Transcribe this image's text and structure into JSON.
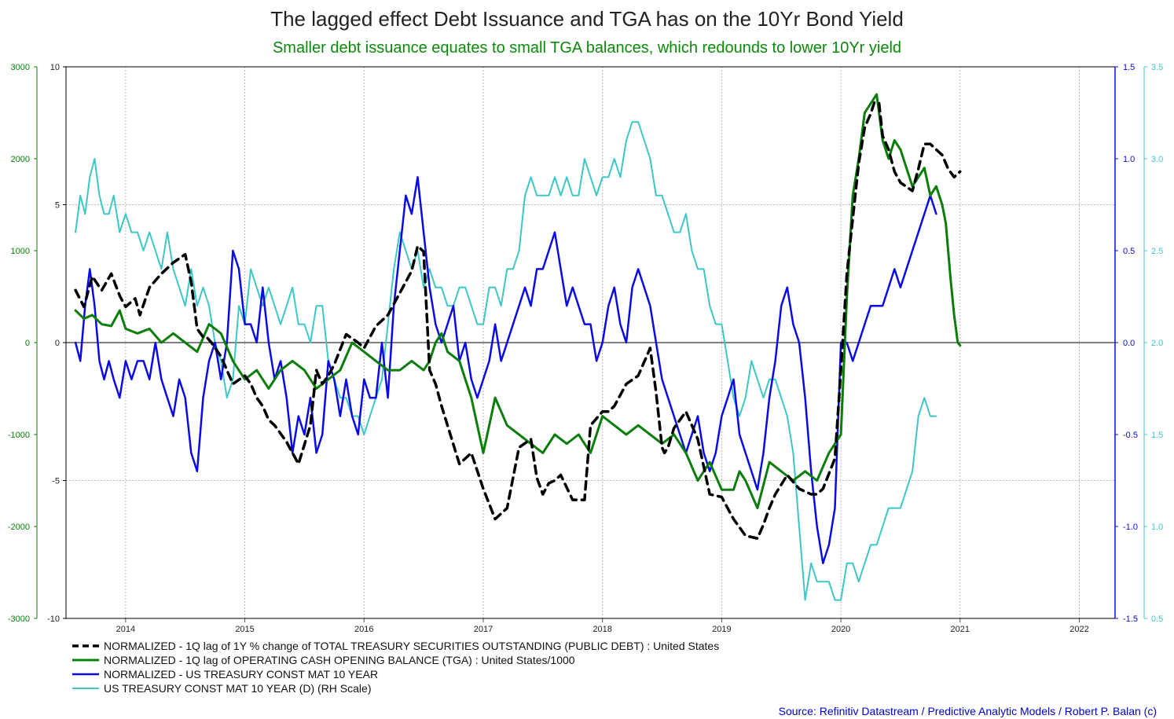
{
  "chart_data": {
    "type": "line",
    "title": "The lagged effect Debt Issuance and TGA has on the 10Yr Bond Yield",
    "subtitle": "Smaller debt issuance equates to small TGA balances, which redounds to lower 10Yr yield",
    "source": "Source: Refinitiv Datastream / Predictive Analytic Models / Robert P. Balan (c)",
    "colors": {
      "debt": "#000000",
      "tga": "#0a7d0a",
      "yield_norm": "#0a0ae6",
      "yield": "#3cc6c6",
      "axis_far_left": "#0a7d0a",
      "axis_right_inner": "#0a0ae6",
      "axis_right_outer": "#3cc6c6",
      "source_text": "#0000cc",
      "subtitle_text": "#0a8a0a"
    },
    "x_axis": {
      "range": [
        2013.5,
        2022.3
      ],
      "tick_labels": [
        "2014",
        "2015",
        "2016",
        "2017",
        "2018",
        "2019",
        "2020",
        "2021",
        "2022"
      ]
    },
    "axes": {
      "far_left": {
        "range": [
          -3000,
          3000
        ],
        "ticks": [
          "3000",
          "2000",
          "1000",
          "0",
          "-1000",
          "-2000",
          "-3000"
        ]
      },
      "left": {
        "range": [
          -10,
          10
        ],
        "ticks": [
          "10",
          "5",
          "0",
          "-5",
          "-10"
        ]
      },
      "right_inner": {
        "range": [
          -1.5,
          1.5
        ],
        "ticks": [
          "1.5",
          "1.0",
          "0.5",
          "0.0",
          "-0.5",
          "-1.0",
          "-1.5"
        ]
      },
      "right_outer": {
        "range": [
          0.5,
          3.5
        ],
        "ticks": [
          "3.5",
          "3.0",
          "2.5",
          "2.0",
          "1.5",
          "1.0",
          "0.5"
        ]
      }
    },
    "legend": [
      "NORMALIZED - 1Q lag of 1Y % change of TOTAL TREASURY SECURITIES OUTSTANDING (PUBLIC DEBT) : United States",
      "NORMALIZED - 1Q lag of OPERATING CASH OPENING BALANCE (TGA) : United States/1000",
      "NORMALIZED - US TREASURY CONST MAT 10 YEAR",
      "US TREASURY CONST MAT 10 YEAR (D) (RH Scale)"
    ],
    "series": [
      {
        "name": "NORMALIZED - 1Q lag of 1Y % change of TOTAL TREASURY SECURITIES OUTSTANDING (PUBLIC DEBT) : United States",
        "axis": "left",
        "x": [
          2013.58,
          2013.65,
          2013.72,
          2013.8,
          2013.88,
          2013.95,
          2014.0,
          2014.08,
          2014.12,
          2014.2,
          2014.3,
          2014.4,
          2014.5,
          2014.55,
          2014.6,
          2014.65,
          2014.68,
          2014.72,
          2014.8,
          2014.9,
          2015.0,
          2015.05,
          2015.1,
          2015.15,
          2015.2,
          2015.25,
          2015.35,
          2015.45,
          2015.55,
          2015.6,
          2015.65,
          2015.7,
          2015.75,
          2015.85,
          2015.95,
          2016.0,
          2016.1,
          2016.2,
          2016.3,
          2016.4,
          2016.45,
          2016.5,
          2016.55,
          2016.6,
          2016.65,
          2016.7,
          2016.8,
          2016.9,
          2017.0,
          2017.1,
          2017.2,
          2017.3,
          2017.4,
          2017.45,
          2017.5,
          2017.55,
          2017.6,
          2017.65,
          2017.75,
          2017.85,
          2017.9,
          2018.0,
          2018.05,
          2018.1,
          2018.2,
          2018.3,
          2018.4,
          2018.45,
          2018.5,
          2018.52,
          2018.55,
          2018.6,
          2018.7,
          2018.8,
          2018.9,
          2019.0,
          2019.1,
          2019.2,
          2019.3,
          2019.35,
          2019.4,
          2019.45,
          2019.55,
          2019.65,
          2019.75,
          2019.8,
          2019.85,
          2019.95,
          2020.0,
          2020.05,
          2020.1,
          2020.15,
          2020.2,
          2020.25,
          2020.28,
          2020.32,
          2020.35,
          2020.4,
          2020.45,
          2020.5,
          2020.6,
          2020.65,
          2020.7,
          2020.75,
          2020.8,
          2020.85,
          2020.9,
          2020.95,
          2021.0
        ],
        "values": [
          1.9,
          1.3,
          2.4,
          1.9,
          2.5,
          1.7,
          1.3,
          1.6,
          1.0,
          2.0,
          2.5,
          2.9,
          3.2,
          2.2,
          0.5,
          0.2,
          0.2,
          0.0,
          -0.5,
          -1.5,
          -1.2,
          -1.5,
          -2.0,
          -2.3,
          -2.8,
          -3.0,
          -3.6,
          -4.4,
          -3.0,
          -1.0,
          -1.5,
          -1.2,
          -0.8,
          0.3,
          0.0,
          -0.2,
          0.6,
          1.0,
          1.8,
          2.6,
          3.5,
          3.3,
          -1.0,
          -1.5,
          -2.3,
          -3.0,
          -4.4,
          -4.0,
          -5.3,
          -6.4,
          -6.0,
          -3.8,
          -3.5,
          -4.9,
          -5.5,
          -5.1,
          -5.0,
          -4.8,
          -5.7,
          -5.7,
          -3.0,
          -2.5,
          -2.5,
          -2.3,
          -1.5,
          -1.2,
          -0.2,
          -1.8,
          -3.8,
          -4.0,
          -3.8,
          -3.1,
          -2.5,
          -3.5,
          -5.5,
          -5.6,
          -6.4,
          -7.0,
          -7.1,
          -6.6,
          -6.0,
          -5.5,
          -4.8,
          -5.3,
          -5.5,
          -5.5,
          -5.3,
          -4.2,
          -1.0,
          2.5,
          4.5,
          6.5,
          7.8,
          8.3,
          8.7,
          8.7,
          7.5,
          7.0,
          6.2,
          5.8,
          5.5,
          6.3,
          7.2,
          7.2,
          7.0,
          6.8,
          6.3,
          6.0,
          6.2
        ]
      },
      {
        "name": "NORMALIZED - 1Q lag of OPERATING CASH OPENING BALANCE (TGA) : United States/1000",
        "axis": "far_left",
        "x": [
          2013.58,
          2013.65,
          2013.72,
          2013.8,
          2013.88,
          2013.95,
          2014.0,
          2014.1,
          2014.2,
          2014.3,
          2014.4,
          2014.5,
          2014.6,
          2014.7,
          2014.8,
          2014.9,
          2015.0,
          2015.1,
          2015.2,
          2015.3,
          2015.4,
          2015.5,
          2015.6,
          2015.7,
          2015.8,
          2015.9,
          2016.0,
          2016.1,
          2016.2,
          2016.3,
          2016.4,
          2016.5,
          2016.55,
          2016.6,
          2016.65,
          2016.7,
          2016.8,
          2016.9,
          2017.0,
          2017.05,
          2017.1,
          2017.2,
          2017.3,
          2017.4,
          2017.5,
          2017.6,
          2017.7,
          2017.8,
          2017.9,
          2018.0,
          2018.1,
          2018.2,
          2018.3,
          2018.4,
          2018.5,
          2018.6,
          2018.7,
          2018.8,
          2018.9,
          2019.0,
          2019.1,
          2019.15,
          2019.2,
          2019.3,
          2019.4,
          2019.5,
          2019.6,
          2019.7,
          2019.8,
          2019.9,
          2020.0,
          2020.05,
          2020.1,
          2020.15,
          2020.2,
          2020.25,
          2020.3,
          2020.35,
          2020.4,
          2020.45,
          2020.5,
          2020.55,
          2020.6,
          2020.65,
          2020.7,
          2020.75,
          2020.8,
          2020.85,
          2020.88,
          2020.92,
          2020.95,
          2020.98,
          2021.0
        ],
        "values": [
          350,
          260,
          300,
          200,
          180,
          350,
          150,
          100,
          150,
          0,
          100,
          0,
          -100,
          200,
          100,
          -200,
          -400,
          -300,
          -500,
          -300,
          -200,
          -300,
          -500,
          -400,
          -300,
          0,
          -100,
          -200,
          -300,
          -300,
          -200,
          -300,
          -200,
          0,
          100,
          -100,
          -200,
          -600,
          -1200,
          -900,
          -600,
          -900,
          -1000,
          -1100,
          -1200,
          -1000,
          -1100,
          -1000,
          -1200,
          -800,
          -900,
          -1000,
          -900,
          -1000,
          -1100,
          -1000,
          -1200,
          -1500,
          -1300,
          -1600,
          -1600,
          -1400,
          -1500,
          -1800,
          -1300,
          -1400,
          -1500,
          -1400,
          -1500,
          -1200,
          -1000,
          500,
          1600,
          2000,
          2500,
          2600,
          2700,
          2200,
          2000,
          2200,
          2100,
          1900,
          1700,
          1800,
          1900,
          1600,
          1700,
          1500,
          1300,
          700,
          300,
          0,
          -30
        ]
      },
      {
        "name": "NORMALIZED - US TREASURY CONST MAT 10 YEAR",
        "axis": "right_inner",
        "x": [
          2013.58,
          2013.62,
          2013.66,
          2013.7,
          2013.74,
          2013.78,
          2013.82,
          2013.86,
          2013.9,
          2013.95,
          2014.0,
          2014.05,
          2014.1,
          2014.15,
          2014.2,
          2014.25,
          2014.3,
          2014.35,
          2014.4,
          2014.45,
          2014.5,
          2014.55,
          2014.6,
          2014.65,
          2014.7,
          2014.75,
          2014.8,
          2014.85,
          2014.9,
          2014.95,
          2015.0,
          2015.05,
          2015.1,
          2015.15,
          2015.2,
          2015.25,
          2015.3,
          2015.35,
          2015.4,
          2015.45,
          2015.5,
          2015.55,
          2015.6,
          2015.65,
          2015.7,
          2015.75,
          2015.8,
          2015.85,
          2015.9,
          2015.95,
          2016.0,
          2016.05,
          2016.1,
          2016.15,
          2016.2,
          2016.25,
          2016.3,
          2016.35,
          2016.4,
          2016.45,
          2016.5,
          2016.55,
          2016.6,
          2016.65,
          2016.7,
          2016.75,
          2016.8,
          2016.85,
          2016.9,
          2016.95,
          2017.0,
          2017.05,
          2017.1,
          2017.15,
          2017.2,
          2017.25,
          2017.3,
          2017.35,
          2017.4,
          2017.45,
          2017.5,
          2017.55,
          2017.6,
          2017.65,
          2017.7,
          2017.75,
          2017.8,
          2017.85,
          2017.9,
          2017.95,
          2018.0,
          2018.05,
          2018.1,
          2018.15,
          2018.2,
          2018.25,
          2018.3,
          2018.35,
          2018.4,
          2018.45,
          2018.5,
          2018.55,
          2018.6,
          2018.65,
          2018.7,
          2018.75,
          2018.8,
          2018.85,
          2018.9,
          2018.95,
          2019.0,
          2019.05,
          2019.1,
          2019.15,
          2019.2,
          2019.25,
          2019.3,
          2019.35,
          2019.4,
          2019.45,
          2019.5,
          2019.55,
          2019.6,
          2019.65,
          2019.7,
          2019.75,
          2019.8,
          2019.85,
          2019.9,
          2019.95,
          2020.0,
          2020.05,
          2020.1,
          2020.15,
          2020.2,
          2020.25,
          2020.3,
          2020.35,
          2020.4,
          2020.45,
          2020.5,
          2020.55,
          2020.6,
          2020.65,
          2020.7,
          2020.75,
          2020.8
        ],
        "values": [
          0.0,
          -0.1,
          0.2,
          0.4,
          0.2,
          -0.1,
          -0.2,
          -0.1,
          -0.2,
          -0.3,
          -0.1,
          -0.2,
          -0.1,
          -0.1,
          -0.2,
          0.0,
          -0.2,
          -0.3,
          -0.4,
          -0.2,
          -0.3,
          -0.6,
          -0.7,
          -0.3,
          -0.1,
          0.0,
          -0.2,
          0.0,
          0.5,
          0.4,
          0.1,
          0.1,
          0.0,
          0.3,
          0.0,
          -0.2,
          -0.1,
          -0.3,
          -0.6,
          -0.4,
          -0.5,
          -0.3,
          -0.6,
          -0.5,
          -0.1,
          -0.2,
          -0.4,
          -0.2,
          -0.4,
          -0.5,
          -0.2,
          -0.3,
          -0.3,
          0.0,
          -0.3,
          0.2,
          0.5,
          0.8,
          0.7,
          0.9,
          0.6,
          0.3,
          0.1,
          0.0,
          0.1,
          0.2,
          -0.1,
          0.0,
          -0.2,
          -0.3,
          -0.2,
          -0.1,
          0.1,
          -0.1,
          0.0,
          0.1,
          0.2,
          0.3,
          0.2,
          0.4,
          0.4,
          0.5,
          0.6,
          0.4,
          0.2,
          0.3,
          0.2,
          0.1,
          0.1,
          -0.1,
          0.0,
          0.2,
          0.3,
          0.1,
          0.0,
          0.3,
          0.4,
          0.3,
          0.2,
          0.0,
          -0.2,
          -0.3,
          -0.4,
          -0.5,
          -0.6,
          -0.5,
          -0.4,
          -0.6,
          -0.7,
          -0.6,
          -0.4,
          -0.3,
          -0.2,
          -0.5,
          -0.6,
          -0.7,
          -0.8,
          -0.6,
          -0.3,
          -0.1,
          0.2,
          0.3,
          0.1,
          0.0,
          -0.3,
          -0.7,
          -1.0,
          -1.2,
          -1.1,
          -0.9,
          0.0,
          0.0,
          -0.1,
          0.0,
          0.1,
          0.2,
          0.2,
          0.2,
          0.3,
          0.4,
          0.3,
          0.4,
          0.5,
          0.6,
          0.7,
          0.8,
          0.7
        ]
      },
      {
        "name": "US TREASURY CONST MAT 10 YEAR (D) (RH Scale)",
        "axis": "right_outer",
        "x": [
          2013.58,
          2013.62,
          2013.66,
          2013.7,
          2013.74,
          2013.78,
          2013.82,
          2013.86,
          2013.9,
          2013.95,
          2014.0,
          2014.05,
          2014.1,
          2014.15,
          2014.2,
          2014.25,
          2014.3,
          2014.35,
          2014.4,
          2014.45,
          2014.5,
          2014.55,
          2014.6,
          2014.65,
          2014.7,
          2014.75,
          2014.8,
          2014.85,
          2014.9,
          2014.95,
          2015.0,
          2015.05,
          2015.1,
          2015.15,
          2015.2,
          2015.25,
          2015.3,
          2015.35,
          2015.4,
          2015.45,
          2015.5,
          2015.55,
          2015.6,
          2015.65,
          2015.7,
          2015.75,
          2015.8,
          2015.85,
          2015.9,
          2015.95,
          2016.0,
          2016.05,
          2016.1,
          2016.15,
          2016.2,
          2016.25,
          2016.3,
          2016.35,
          2016.4,
          2016.45,
          2016.5,
          2016.55,
          2016.6,
          2016.65,
          2016.7,
          2016.75,
          2016.8,
          2016.85,
          2016.9,
          2016.95,
          2017.0,
          2017.05,
          2017.1,
          2017.15,
          2017.2,
          2017.25,
          2017.3,
          2017.35,
          2017.4,
          2017.45,
          2017.5,
          2017.55,
          2017.6,
          2017.65,
          2017.7,
          2017.75,
          2017.8,
          2017.85,
          2017.9,
          2017.95,
          2018.0,
          2018.05,
          2018.1,
          2018.15,
          2018.2,
          2018.25,
          2018.3,
          2018.35,
          2018.4,
          2018.45,
          2018.5,
          2018.55,
          2018.6,
          2018.65,
          2018.7,
          2018.75,
          2018.8,
          2018.85,
          2018.9,
          2018.95,
          2019.0,
          2019.05,
          2019.1,
          2019.15,
          2019.2,
          2019.25,
          2019.3,
          2019.35,
          2019.4,
          2019.45,
          2019.5,
          2019.55,
          2019.6,
          2019.65,
          2019.7,
          2019.75,
          2019.8,
          2019.85,
          2019.9,
          2019.95,
          2020.0,
          2020.05,
          2020.1,
          2020.15,
          2020.2,
          2020.25,
          2020.3,
          2020.35,
          2020.4,
          2020.45,
          2020.5,
          2020.55,
          2020.6,
          2020.65,
          2020.7,
          2020.75,
          2020.8
        ],
        "values": [
          2.6,
          2.8,
          2.7,
          2.9,
          3.0,
          2.8,
          2.7,
          2.7,
          2.8,
          2.6,
          2.7,
          2.6,
          2.6,
          2.5,
          2.6,
          2.5,
          2.4,
          2.6,
          2.4,
          2.3,
          2.2,
          2.4,
          2.2,
          2.3,
          2.2,
          2.0,
          1.9,
          1.7,
          1.8,
          2.2,
          2.1,
          2.4,
          2.3,
          2.2,
          2.3,
          2.2,
          2.1,
          2.2,
          2.3,
          2.1,
          2.1,
          2.0,
          2.2,
          2.2,
          1.9,
          1.8,
          1.7,
          1.7,
          1.6,
          1.6,
          1.5,
          1.6,
          1.7,
          1.8,
          2.1,
          2.4,
          2.6,
          2.5,
          2.4,
          2.5,
          2.3,
          2.4,
          2.3,
          2.3,
          2.2,
          2.2,
          2.3,
          2.3,
          2.2,
          2.1,
          2.1,
          2.3,
          2.3,
          2.2,
          2.4,
          2.4,
          2.5,
          2.8,
          2.9,
          2.8,
          2.8,
          2.8,
          2.9,
          2.8,
          2.9,
          2.8,
          2.8,
          3.0,
          2.9,
          2.8,
          2.9,
          2.9,
          3.0,
          2.9,
          3.1,
          3.2,
          3.2,
          3.1,
          3.0,
          2.8,
          2.8,
          2.7,
          2.6,
          2.6,
          2.7,
          2.5,
          2.4,
          2.4,
          2.2,
          2.1,
          2.1,
          1.9,
          1.7,
          1.6,
          1.7,
          1.9,
          1.8,
          1.7,
          1.8,
          1.8,
          1.7,
          1.6,
          1.4,
          1.0,
          0.6,
          0.8,
          0.7,
          0.7,
          0.7,
          0.6,
          0.6,
          0.8,
          0.8,
          0.7,
          0.8,
          0.9,
          0.9,
          1.0,
          1.1,
          1.1,
          1.1,
          1.2,
          1.3,
          1.6,
          1.7,
          1.6,
          1.6
        ]
      }
    ]
  }
}
